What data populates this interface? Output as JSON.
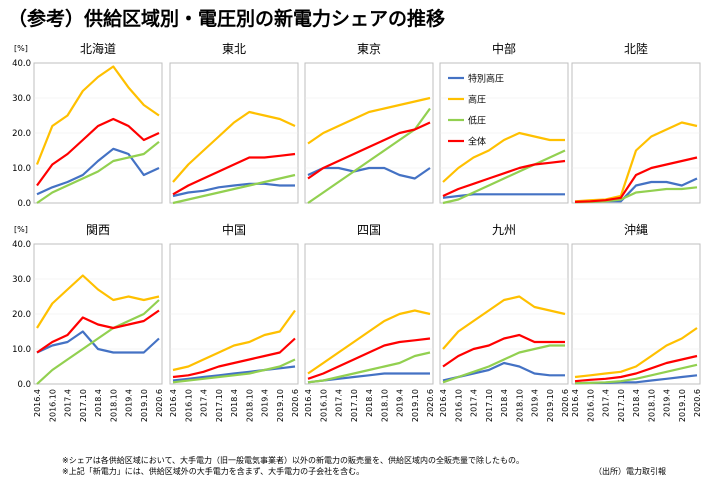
{
  "title": "（参考）供給区域別・電圧別の新電力シェアの推移",
  "footnotes": [
    "※シェアは各供給区域において、大手電力（旧一般電気事業者）以外の新電力の販売量を、供給区域内の全販売量で除したもの。",
    "※上記「新電力」には、供給区域外の大手電力を含まず、大手電力の子会社を含む。"
  ],
  "source": "（出所）電力取引報",
  "unit_label": "[%]",
  "y_ticks": [
    "0.0",
    "10.0",
    "20.0",
    "30.0",
    "40.0"
  ],
  "x_ticks": [
    "2016.4",
    "2016.10",
    "2017.4",
    "2017.10",
    "2018.4",
    "2018.10",
    "2019.4",
    "2019.10",
    "2020.6"
  ],
  "colors": {
    "special_hv": "#4472c4",
    "hv": "#ffc000",
    "lv": "#92d050",
    "total": "#ff0000",
    "axis": "#bfbfbf"
  },
  "chart_data": [
    {
      "type": "line",
      "title": "北海道",
      "ylim": [
        0,
        40
      ],
      "x": [
        "2016.4",
        "2016.10",
        "2017.4",
        "2017.10",
        "2018.4",
        "2018.10",
        "2019.4",
        "2019.10",
        "2020.6"
      ],
      "series": [
        {
          "name": "特別高圧",
          "values": [
            2.5,
            4.5,
            6,
            8,
            12,
            15.5,
            14,
            8,
            10
          ]
        },
        {
          "name": "高圧",
          "values": [
            11,
            22,
            25,
            32,
            36,
            39,
            33,
            28,
            25
          ]
        },
        {
          "name": "低圧",
          "values": [
            0,
            3,
            5,
            7,
            9,
            12,
            13,
            14,
            17.5
          ]
        },
        {
          "name": "全体",
          "values": [
            5,
            11,
            14,
            18,
            22,
            24,
            22,
            18,
            20
          ]
        }
      ]
    },
    {
      "type": "line",
      "title": "東北",
      "ylim": [
        0,
        40
      ],
      "x": [
        "2016.4",
        "2016.10",
        "2017.4",
        "2017.10",
        "2018.4",
        "2018.10",
        "2019.4",
        "2019.10",
        "2020.6"
      ],
      "series": [
        {
          "name": "特別高圧",
          "values": [
            2,
            3,
            3.5,
            4.5,
            5,
            5.5,
            5.5,
            5,
            5
          ]
        },
        {
          "name": "高圧",
          "values": [
            6,
            11,
            15,
            19,
            23,
            26,
            25,
            24,
            22
          ]
        },
        {
          "name": "低圧",
          "values": [
            0,
            1,
            2,
            3,
            4,
            5,
            6,
            7,
            8
          ]
        },
        {
          "name": "全体",
          "values": [
            2.5,
            5,
            7,
            9,
            11,
            13,
            13,
            13.5,
            14
          ]
        }
      ]
    },
    {
      "type": "line",
      "title": "東京",
      "ylim": [
        0,
        40
      ],
      "x": [
        "2016.4",
        "2016.10",
        "2017.4",
        "2017.10",
        "2018.4",
        "2018.10",
        "2019.4",
        "2019.10",
        "2020.6"
      ],
      "series": [
        {
          "name": "特別高圧",
          "values": [
            8,
            10,
            10,
            9,
            10,
            10,
            8,
            7,
            10
          ]
        },
        {
          "name": "高圧",
          "values": [
            17,
            20,
            22,
            24,
            26,
            27,
            28,
            29,
            30
          ]
        },
        {
          "name": "低圧",
          "values": [
            0,
            3,
            6,
            9,
            12,
            15,
            18,
            21,
            27
          ]
        },
        {
          "name": "全体",
          "values": [
            7,
            10,
            12,
            14,
            16,
            18,
            20,
            21,
            23
          ]
        }
      ]
    },
    {
      "type": "line",
      "title": "中部",
      "ylim": [
        0,
        40
      ],
      "x": [
        "2016.4",
        "2016.10",
        "2017.4",
        "2017.10",
        "2018.4",
        "2018.10",
        "2019.4",
        "2019.10",
        "2020.6"
      ],
      "series": [
        {
          "name": "特別高圧",
          "values": [
            1.5,
            2,
            2.5,
            2.5,
            2.5,
            2.5,
            2.5,
            2.5,
            2.5
          ]
        },
        {
          "name": "高圧",
          "values": [
            6,
            10,
            13,
            15,
            18,
            20,
            19,
            18,
            18
          ]
        },
        {
          "name": "低圧",
          "values": [
            0,
            1,
            3,
            5,
            7,
            9,
            11,
            13,
            15
          ]
        },
        {
          "name": "全体",
          "values": [
            2,
            4,
            5.5,
            7,
            8.5,
            10,
            11,
            11.5,
            12
          ]
        }
      ]
    },
    {
      "type": "line",
      "title": "北陸",
      "ylim": [
        0,
        40
      ],
      "x": [
        "2016.4",
        "2016.10",
        "2017.4",
        "2017.10",
        "2018.4",
        "2018.10",
        "2019.4",
        "2019.10",
        "2020.6"
      ],
      "series": [
        {
          "name": "特別高圧",
          "values": [
            0.3,
            0.3,
            0.5,
            0.5,
            5,
            6,
            6,
            5,
            7
          ]
        },
        {
          "name": "高圧",
          "values": [
            0.5,
            0.8,
            1,
            2,
            15,
            19,
            21,
            23,
            22
          ]
        },
        {
          "name": "低圧",
          "values": [
            0.2,
            0.3,
            0.5,
            1,
            3,
            3.5,
            4,
            4,
            4.5
          ]
        },
        {
          "name": "全体",
          "values": [
            0.3,
            0.5,
            0.8,
            1.5,
            8,
            10,
            11,
            12,
            13
          ]
        }
      ]
    },
    {
      "type": "line",
      "title": "関西",
      "ylim": [
        0,
        40
      ],
      "x": [
        "2016.4",
        "2016.10",
        "2017.4",
        "2017.10",
        "2018.4",
        "2018.10",
        "2019.4",
        "2019.10",
        "2020.6"
      ],
      "series": [
        {
          "name": "特別高圧",
          "values": [
            9,
            11,
            12,
            15,
            10,
            9,
            9,
            9,
            13
          ]
        },
        {
          "name": "高圧",
          "values": [
            16,
            23,
            27,
            31,
            27,
            24,
            25,
            24,
            25
          ]
        },
        {
          "name": "低圧",
          "values": [
            0,
            4,
            7,
            10,
            13,
            16,
            18,
            20,
            24
          ]
        },
        {
          "name": "全体",
          "values": [
            9,
            12,
            14,
            19,
            17,
            16,
            17,
            18,
            21
          ]
        }
      ]
    },
    {
      "type": "line",
      "title": "中国",
      "ylim": [
        0,
        40
      ],
      "x": [
        "2016.4",
        "2016.10",
        "2017.4",
        "2017.10",
        "2018.4",
        "2018.10",
        "2019.4",
        "2019.10",
        "2020.6"
      ],
      "series": [
        {
          "name": "特別高圧",
          "values": [
            1,
            1.5,
            2,
            2.5,
            3,
            3.5,
            4,
            4.5,
            5
          ]
        },
        {
          "name": "高圧",
          "values": [
            4,
            5,
            7,
            9,
            11,
            12,
            14,
            15,
            21
          ]
        },
        {
          "name": "低圧",
          "values": [
            0.5,
            1,
            1.5,
            2,
            2.5,
            3,
            4,
            5,
            7
          ]
        },
        {
          "name": "全体",
          "values": [
            2,
            2.5,
            3.5,
            5,
            6,
            7,
            8,
            9,
            13
          ]
        }
      ]
    },
    {
      "type": "line",
      "title": "四国",
      "ylim": [
        0,
        40
      ],
      "x": [
        "2016.4",
        "2016.10",
        "2017.4",
        "2017.10",
        "2018.4",
        "2018.10",
        "2019.4",
        "2019.10",
        "2020.6"
      ],
      "series": [
        {
          "name": "特別高圧",
          "values": [
            0.5,
            1,
            1.5,
            2,
            2.5,
            3,
            3,
            3,
            3
          ]
        },
        {
          "name": "高圧",
          "values": [
            3,
            6,
            9,
            12,
            15,
            18,
            20,
            21,
            20
          ]
        },
        {
          "name": "低圧",
          "values": [
            0.5,
            1,
            2,
            3,
            4,
            5,
            6,
            8,
            9
          ]
        },
        {
          "name": "全体",
          "values": [
            1.5,
            3,
            5,
            7,
            9,
            11,
            12,
            12.5,
            13
          ]
        }
      ]
    },
    {
      "type": "line",
      "title": "九州",
      "ylim": [
        0,
        40
      ],
      "x": [
        "2016.4",
        "2016.10",
        "2017.4",
        "2017.10",
        "2018.4",
        "2018.10",
        "2019.4",
        "2019.10",
        "2020.6"
      ],
      "series": [
        {
          "name": "特別高圧",
          "values": [
            1,
            2,
            3,
            4,
            6,
            5,
            3,
            2.5,
            2.5
          ]
        },
        {
          "name": "高圧",
          "values": [
            10,
            15,
            18,
            21,
            24,
            25,
            22,
            21,
            20
          ]
        },
        {
          "name": "低圧",
          "values": [
            0.5,
            2,
            3.5,
            5,
            7,
            9,
            10,
            11,
            11
          ]
        },
        {
          "name": "全体",
          "values": [
            5,
            8,
            10,
            11,
            13,
            14,
            12,
            12,
            12
          ]
        }
      ]
    },
    {
      "type": "line",
      "title": "沖縄",
      "ylim": [
        0,
        40
      ],
      "x": [
        "2016.4",
        "2016.10",
        "2017.4",
        "2017.10",
        "2018.4",
        "2018.10",
        "2019.4",
        "2019.10",
        "2020.6"
      ],
      "series": [
        {
          "name": "特別高圧",
          "values": [
            0.2,
            0.3,
            0.3,
            0.5,
            0.5,
            1,
            1.5,
            2,
            2.5
          ]
        },
        {
          "name": "高圧",
          "values": [
            2,
            2.5,
            3,
            3.5,
            5,
            8,
            11,
            13,
            16
          ]
        },
        {
          "name": "低圧",
          "values": [
            0.2,
            0.3,
            0.5,
            0.8,
            1.5,
            2.5,
            3.5,
            4.5,
            5.5
          ]
        },
        {
          "name": "全体",
          "values": [
            0.8,
            1.2,
            1.5,
            2,
            3,
            4.5,
            6,
            7,
            8
          ]
        }
      ]
    }
  ],
  "legend": [
    "特別高圧",
    "高圧",
    "低圧",
    "全体"
  ]
}
